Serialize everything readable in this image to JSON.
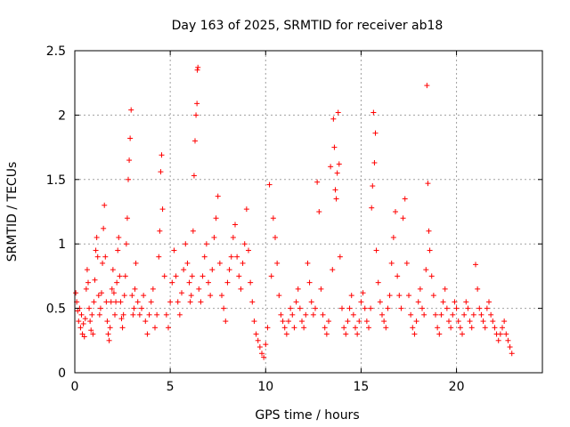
{
  "chart_data": {
    "type": "scatter",
    "title": "Day 163 of 2025, SRMTID for receiver ab18",
    "xlabel": "GPS time / hours",
    "ylabel": "SRMTID / TECUs",
    "xlim": [
      0,
      24.5
    ],
    "ylim": [
      0,
      2.5
    ],
    "x_ticks": [
      0,
      5,
      10,
      15,
      20
    ],
    "x_tick_labels": [
      "0",
      "5",
      "10",
      "15",
      "20"
    ],
    "y_ticks": [
      0,
      0.5,
      1,
      1.5,
      2,
      2.5
    ],
    "y_tick_labels": [
      "0",
      "0.5",
      "1",
      "1.5",
      "2",
      "2.5"
    ],
    "grid": true,
    "marker": "plus",
    "color": "#ff0000",
    "series": [
      {
        "name": "SRMTID",
        "points": [
          [
            0.05,
            0.62
          ],
          [
            0.1,
            0.55
          ],
          [
            0.15,
            0.48
          ],
          [
            0.2,
            0.4
          ],
          [
            0.25,
            0.5
          ],
          [
            0.3,
            0.35
          ],
          [
            0.35,
            0.45
          ],
          [
            0.4,
            0.3
          ],
          [
            0.45,
            0.38
          ],
          [
            0.5,
            0.28
          ],
          [
            0.55,
            0.42
          ],
          [
            0.6,
            0.65
          ],
          [
            0.65,
            0.8
          ],
          [
            0.7,
            0.7
          ],
          [
            0.75,
            0.5
          ],
          [
            0.8,
            0.4
          ],
          [
            0.85,
            0.33
          ],
          [
            0.9,
            0.45
          ],
          [
            0.95,
            0.3
          ],
          [
            1.0,
            0.55
          ],
          [
            1.05,
            0.72
          ],
          [
            1.1,
            0.95
          ],
          [
            1.15,
            1.05
          ],
          [
            1.2,
            0.9
          ],
          [
            1.25,
            0.6
          ],
          [
            1.3,
            0.45
          ],
          [
            1.35,
            0.5
          ],
          [
            1.4,
            0.62
          ],
          [
            1.45,
            0.85
          ],
          [
            1.5,
            1.12
          ],
          [
            1.55,
            1.3
          ],
          [
            1.6,
            0.9
          ],
          [
            1.65,
            0.55
          ],
          [
            1.7,
            0.4
          ],
          [
            1.75,
            0.3
          ],
          [
            1.8,
            0.25
          ],
          [
            1.85,
            0.35
          ],
          [
            1.9,
            0.55
          ],
          [
            1.95,
            0.65
          ],
          [
            2.0,
            0.8
          ],
          [
            2.05,
            0.62
          ],
          [
            2.1,
            0.45
          ],
          [
            2.15,
            0.55
          ],
          [
            2.2,
            0.7
          ],
          [
            2.25,
            0.95
          ],
          [
            2.3,
            1.05
          ],
          [
            2.35,
            0.75
          ],
          [
            2.4,
            0.55
          ],
          [
            2.45,
            0.42
          ],
          [
            2.5,
            0.35
          ],
          [
            2.55,
            0.45
          ],
          [
            2.6,
            0.6
          ],
          [
            2.65,
            0.75
          ],
          [
            2.7,
            1.0
          ],
          [
            2.75,
            1.2
          ],
          [
            2.8,
            1.5
          ],
          [
            2.85,
            1.65
          ],
          [
            2.9,
            1.82
          ],
          [
            2.95,
            2.04
          ],
          [
            3.0,
            0.6
          ],
          [
            3.05,
            0.45
          ],
          [
            3.1,
            0.5
          ],
          [
            3.15,
            0.65
          ],
          [
            3.2,
            0.85
          ],
          [
            3.3,
            0.55
          ],
          [
            3.4,
            0.45
          ],
          [
            3.5,
            0.5
          ],
          [
            3.6,
            0.6
          ],
          [
            3.7,
            0.4
          ],
          [
            3.8,
            0.3
          ],
          [
            3.9,
            0.45
          ],
          [
            4.0,
            0.55
          ],
          [
            4.1,
            0.65
          ],
          [
            4.2,
            0.35
          ],
          [
            4.3,
            0.45
          ],
          [
            4.4,
            0.9
          ],
          [
            4.45,
            1.1
          ],
          [
            4.5,
            1.56
          ],
          [
            4.55,
            1.69
          ],
          [
            4.6,
            1.27
          ],
          [
            4.7,
            0.75
          ],
          [
            4.8,
            0.45
          ],
          [
            4.9,
            0.35
          ],
          [
            5.0,
            0.55
          ],
          [
            5.1,
            0.7
          ],
          [
            5.2,
            0.95
          ],
          [
            5.3,
            0.75
          ],
          [
            5.4,
            0.55
          ],
          [
            5.5,
            0.45
          ],
          [
            5.6,
            0.62
          ],
          [
            5.7,
            0.8
          ],
          [
            5.8,
            1.0
          ],
          [
            5.9,
            0.85
          ],
          [
            6.0,
            0.7
          ],
          [
            6.05,
            0.55
          ],
          [
            6.1,
            0.6
          ],
          [
            6.15,
            0.75
          ],
          [
            6.2,
            1.1
          ],
          [
            6.25,
            1.53
          ],
          [
            6.3,
            1.8
          ],
          [
            6.35,
            2.0
          ],
          [
            6.4,
            2.09
          ],
          [
            6.42,
            2.35
          ],
          [
            6.45,
            2.37
          ],
          [
            6.5,
            0.65
          ],
          [
            6.6,
            0.55
          ],
          [
            6.7,
            0.75
          ],
          [
            6.8,
            0.9
          ],
          [
            6.9,
            1.0
          ],
          [
            7.0,
            0.7
          ],
          [
            7.1,
            0.6
          ],
          [
            7.2,
            0.8
          ],
          [
            7.3,
            1.05
          ],
          [
            7.4,
            1.2
          ],
          [
            7.5,
            1.37
          ],
          [
            7.6,
            0.85
          ],
          [
            7.7,
            0.6
          ],
          [
            7.8,
            0.5
          ],
          [
            7.9,
            0.4
          ],
          [
            8.0,
            0.7
          ],
          [
            8.1,
            0.8
          ],
          [
            8.2,
            0.9
          ],
          [
            8.3,
            1.05
          ],
          [
            8.4,
            1.15
          ],
          [
            8.5,
            0.9
          ],
          [
            8.6,
            0.75
          ],
          [
            8.7,
            0.65
          ],
          [
            8.8,
            0.85
          ],
          [
            8.9,
            1.0
          ],
          [
            9.0,
            1.27
          ],
          [
            9.1,
            0.95
          ],
          [
            9.2,
            0.7
          ],
          [
            9.3,
            0.55
          ],
          [
            9.4,
            0.4
          ],
          [
            9.5,
            0.3
          ],
          [
            9.6,
            0.25
          ],
          [
            9.7,
            0.2
          ],
          [
            9.8,
            0.15
          ],
          [
            9.9,
            0.12
          ],
          [
            10.0,
            0.22
          ],
          [
            10.1,
            0.35
          ],
          [
            10.2,
            1.46
          ],
          [
            10.3,
            0.75
          ],
          [
            10.4,
            1.2
          ],
          [
            10.5,
            1.05
          ],
          [
            10.6,
            0.85
          ],
          [
            10.7,
            0.6
          ],
          [
            10.8,
            0.45
          ],
          [
            10.9,
            0.4
          ],
          [
            11.0,
            0.35
          ],
          [
            11.1,
            0.3
          ],
          [
            11.2,
            0.4
          ],
          [
            11.3,
            0.5
          ],
          [
            11.4,
            0.45
          ],
          [
            11.5,
            0.35
          ],
          [
            11.6,
            0.55
          ],
          [
            11.7,
            0.65
          ],
          [
            11.8,
            0.5
          ],
          [
            11.9,
            0.4
          ],
          [
            12.0,
            0.35
          ],
          [
            12.1,
            0.45
          ],
          [
            12.2,
            0.85
          ],
          [
            12.3,
            0.7
          ],
          [
            12.4,
            0.55
          ],
          [
            12.5,
            0.45
          ],
          [
            12.6,
            0.5
          ],
          [
            12.7,
            1.48
          ],
          [
            12.8,
            1.25
          ],
          [
            12.9,
            0.65
          ],
          [
            13.0,
            0.45
          ],
          [
            13.1,
            0.35
          ],
          [
            13.2,
            0.3
          ],
          [
            13.3,
            0.4
          ],
          [
            13.4,
            1.6
          ],
          [
            13.5,
            0.8
          ],
          [
            13.55,
            1.97
          ],
          [
            13.6,
            1.75
          ],
          [
            13.65,
            1.42
          ],
          [
            13.7,
            1.35
          ],
          [
            13.75,
            1.55
          ],
          [
            13.8,
            2.02
          ],
          [
            13.85,
            1.62
          ],
          [
            13.9,
            0.9
          ],
          [
            14.0,
            0.5
          ],
          [
            14.1,
            0.35
          ],
          [
            14.2,
            0.3
          ],
          [
            14.3,
            0.4
          ],
          [
            14.4,
            0.5
          ],
          [
            14.5,
            0.6
          ],
          [
            14.6,
            0.45
          ],
          [
            14.7,
            0.35
          ],
          [
            14.8,
            0.3
          ],
          [
            14.9,
            0.4
          ],
          [
            15.0,
            0.55
          ],
          [
            15.1,
            0.62
          ],
          [
            15.2,
            0.5
          ],
          [
            15.3,
            0.4
          ],
          [
            15.4,
            0.35
          ],
          [
            15.5,
            0.5
          ],
          [
            15.55,
            1.28
          ],
          [
            15.6,
            1.45
          ],
          [
            15.65,
            2.02
          ],
          [
            15.7,
            1.63
          ],
          [
            15.75,
            1.86
          ],
          [
            15.8,
            0.95
          ],
          [
            15.9,
            0.7
          ],
          [
            16.0,
            0.55
          ],
          [
            16.1,
            0.45
          ],
          [
            16.2,
            0.4
          ],
          [
            16.3,
            0.35
          ],
          [
            16.4,
            0.5
          ],
          [
            16.5,
            0.6
          ],
          [
            16.6,
            0.85
          ],
          [
            16.7,
            1.05
          ],
          [
            16.8,
            1.25
          ],
          [
            16.9,
            0.75
          ],
          [
            17.0,
            0.6
          ],
          [
            17.1,
            0.5
          ],
          [
            17.2,
            1.2
          ],
          [
            17.3,
            1.35
          ],
          [
            17.4,
            0.85
          ],
          [
            17.5,
            0.6
          ],
          [
            17.6,
            0.45
          ],
          [
            17.7,
            0.35
          ],
          [
            17.8,
            0.3
          ],
          [
            17.9,
            0.4
          ],
          [
            18.0,
            0.55
          ],
          [
            18.1,
            0.65
          ],
          [
            18.2,
            0.5
          ],
          [
            18.3,
            0.45
          ],
          [
            18.4,
            0.8
          ],
          [
            18.45,
            2.23
          ],
          [
            18.5,
            1.47
          ],
          [
            18.55,
            1.1
          ],
          [
            18.6,
            0.95
          ],
          [
            18.7,
            0.75
          ],
          [
            18.8,
            0.6
          ],
          [
            18.9,
            0.45
          ],
          [
            19.0,
            0.35
          ],
          [
            19.1,
            0.3
          ],
          [
            19.2,
            0.45
          ],
          [
            19.3,
            0.55
          ],
          [
            19.4,
            0.65
          ],
          [
            19.5,
            0.5
          ],
          [
            19.6,
            0.4
          ],
          [
            19.7,
            0.35
          ],
          [
            19.8,
            0.45
          ],
          [
            19.9,
            0.55
          ],
          [
            20.0,
            0.5
          ],
          [
            20.1,
            0.4
          ],
          [
            20.2,
            0.35
          ],
          [
            20.3,
            0.3
          ],
          [
            20.4,
            0.45
          ],
          [
            20.5,
            0.55
          ],
          [
            20.6,
            0.5
          ],
          [
            20.7,
            0.4
          ],
          [
            20.8,
            0.35
          ],
          [
            20.9,
            0.45
          ],
          [
            21.0,
            0.84
          ],
          [
            21.1,
            0.65
          ],
          [
            21.2,
            0.5
          ],
          [
            21.3,
            0.45
          ],
          [
            21.4,
            0.4
          ],
          [
            21.5,
            0.35
          ],
          [
            21.6,
            0.5
          ],
          [
            21.7,
            0.55
          ],
          [
            21.8,
            0.45
          ],
          [
            21.9,
            0.4
          ],
          [
            22.0,
            0.35
          ],
          [
            22.1,
            0.3
          ],
          [
            22.2,
            0.25
          ],
          [
            22.3,
            0.3
          ],
          [
            22.4,
            0.35
          ],
          [
            22.5,
            0.4
          ],
          [
            22.6,
            0.3
          ],
          [
            22.7,
            0.25
          ],
          [
            22.8,
            0.2
          ],
          [
            22.9,
            0.15
          ]
        ]
      }
    ]
  }
}
